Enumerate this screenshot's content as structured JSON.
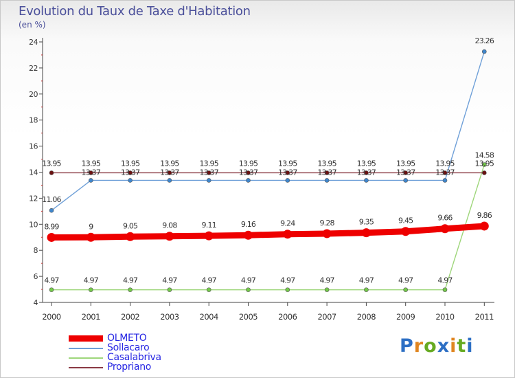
{
  "title": "Evolution du Taux de Taxe d'Habitation",
  "subtitle": "(en %)",
  "logo": {
    "text": "Proxiti",
    "colors": [
      "#2d6fc4",
      "#e0851f",
      "#66aa22",
      "#2d6fc4",
      "#e0851f",
      "#66aa22",
      "#2d6fc4"
    ]
  },
  "chart_data": {
    "type": "line",
    "categories": [
      "2000",
      "2001",
      "2002",
      "2003",
      "2004",
      "2005",
      "2006",
      "2007",
      "2008",
      "2009",
      "2010",
      "2011"
    ],
    "ylim": [
      4,
      24
    ],
    "yticks": [
      4,
      6,
      8,
      10,
      12,
      14,
      16,
      18,
      20,
      22,
      24
    ],
    "grid": false,
    "legend_position": "bottom-left",
    "series": [
      {
        "name": "OLMETO",
        "color": "#ee0000",
        "width": "thick",
        "values": [
          8.99,
          9,
          9.05,
          9.08,
          9.11,
          9.16,
          9.24,
          9.28,
          9.35,
          9.45,
          9.66,
          9.86
        ],
        "labels": [
          "8.99",
          "9",
          "9.05",
          "9.08",
          "9.11",
          "9.16",
          "9.24",
          "9.28",
          "9.35",
          "9.45",
          "9.66",
          "9.86"
        ]
      },
      {
        "name": "Sollacaro",
        "color": "#6fa0d8",
        "marker": "#3f86cc",
        "width": "thin",
        "values": [
          11.06,
          13.37,
          13.37,
          13.37,
          13.37,
          13.37,
          13.37,
          13.37,
          13.37,
          13.37,
          13.37,
          23.26
        ],
        "labels": [
          "11.06",
          "13.37",
          "13.37",
          "13.37",
          "13.37",
          "13.37",
          "13.37",
          "13.37",
          "13.37",
          "13.37",
          "13.37",
          "23.26"
        ]
      },
      {
        "name": "Casalabriva",
        "color": "#9ed67a",
        "marker": "#74c94a",
        "width": "thin",
        "values": [
          4.97,
          4.97,
          4.97,
          4.97,
          4.97,
          4.97,
          4.97,
          4.97,
          4.97,
          4.97,
          4.97,
          14.58
        ],
        "labels": [
          "4.97",
          "4.97",
          "4.97",
          "4.97",
          "4.97",
          "4.97",
          "4.97",
          "4.97",
          "4.97",
          "4.97",
          "4.97",
          "14.58"
        ]
      },
      {
        "name": "Propriano",
        "color": "#8a3a44",
        "marker": "#6a1010",
        "width": "thin",
        "values": [
          13.95,
          13.95,
          13.95,
          13.95,
          13.95,
          13.95,
          13.95,
          13.95,
          13.95,
          13.95,
          13.95,
          13.95
        ],
        "labels": [
          "13.95",
          "13.95",
          "13.95",
          "13.95",
          "13.95",
          "13.95",
          "13.95",
          "13.95",
          "13.95",
          "13.95",
          "13.95",
          "13.95"
        ]
      }
    ]
  }
}
